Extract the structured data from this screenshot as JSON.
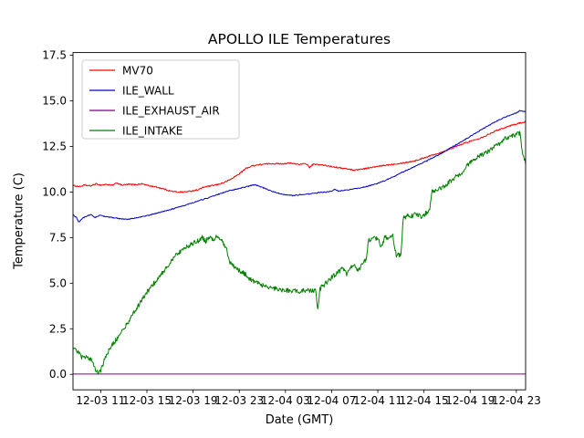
{
  "chart_data": {
    "type": "line",
    "title": "APOLLO ILE Temperatures",
    "xlabel": "Date (GMT)",
    "ylabel": "Temperature (C)",
    "grid": false,
    "legend_position": "upper left",
    "x_encoding": "hours since 12-03 00:00 GMT",
    "xlim": [
      8.6,
      47.8
    ],
    "ylim": [
      -0.85,
      17.65
    ],
    "yticks": [
      0,
      2.5,
      5,
      7.5,
      10,
      12.5,
      15,
      17.5
    ],
    "ytick_labels": [
      "0.0",
      "2.5",
      "5.0",
      "7.5",
      "10.0",
      "12.5",
      "15.0",
      "17.5"
    ],
    "xticks": [
      11,
      15,
      19,
      23,
      27,
      31,
      35,
      39,
      43,
      47
    ],
    "xtick_labels": [
      "12-03 11",
      "12-03 15",
      "12-03 19",
      "12-03 23",
      "12-04 03",
      "12-04 07",
      "12-04 11",
      "12-04 15",
      "12-04 19",
      "12-04 23"
    ],
    "series": [
      {
        "name": "MV70",
        "color": "#ff0000",
        "noise": 0.035,
        "keypoints": [
          [
            8.6,
            10.35
          ],
          [
            9.2,
            10.3
          ],
          [
            9.6,
            10.38
          ],
          [
            10.1,
            10.33
          ],
          [
            10.6,
            10.45
          ],
          [
            11.0,
            10.38
          ],
          [
            11.5,
            10.42
          ],
          [
            12.0,
            10.36
          ],
          [
            12.4,
            10.5
          ],
          [
            12.8,
            10.38
          ],
          [
            13.4,
            10.42
          ],
          [
            14.0,
            10.4
          ],
          [
            14.6,
            10.45
          ],
          [
            15.2,
            10.34
          ],
          [
            15.8,
            10.28
          ],
          [
            16.4,
            10.18
          ],
          [
            17.0,
            10.06
          ],
          [
            17.6,
            10.0
          ],
          [
            18.2,
            10.0
          ],
          [
            18.8,
            10.05
          ],
          [
            19.4,
            10.12
          ],
          [
            20.0,
            10.28
          ],
          [
            20.6,
            10.34
          ],
          [
            21.2,
            10.42
          ],
          [
            21.8,
            10.55
          ],
          [
            22.4,
            10.75
          ],
          [
            23.0,
            11.0
          ],
          [
            23.6,
            11.3
          ],
          [
            24.2,
            11.45
          ],
          [
            25.0,
            11.52
          ],
          [
            25.8,
            11.56
          ],
          [
            26.6,
            11.55
          ],
          [
            27.4,
            11.58
          ],
          [
            28.2,
            11.52
          ],
          [
            28.8,
            11.55
          ],
          [
            29.1,
            11.35
          ],
          [
            29.4,
            11.52
          ],
          [
            30.0,
            11.5
          ],
          [
            30.6,
            11.44
          ],
          [
            31.2,
            11.38
          ],
          [
            31.8,
            11.32
          ],
          [
            32.4,
            11.26
          ],
          [
            33.0,
            11.2
          ],
          [
            33.6,
            11.26
          ],
          [
            34.2,
            11.32
          ],
          [
            34.8,
            11.38
          ],
          [
            35.4,
            11.44
          ],
          [
            36.0,
            11.5
          ],
          [
            36.6,
            11.55
          ],
          [
            37.2,
            11.6
          ],
          [
            37.8,
            11.66
          ],
          [
            38.4,
            11.74
          ],
          [
            39.0,
            11.88
          ],
          [
            39.6,
            12.0
          ],
          [
            40.2,
            12.12
          ],
          [
            40.8,
            12.25
          ],
          [
            41.4,
            12.4
          ],
          [
            42.0,
            12.55
          ],
          [
            42.6,
            12.7
          ],
          [
            43.2,
            12.82
          ],
          [
            43.8,
            12.95
          ],
          [
            44.4,
            13.1
          ],
          [
            45.0,
            13.3
          ],
          [
            45.6,
            13.45
          ],
          [
            46.2,
            13.58
          ],
          [
            46.8,
            13.7
          ],
          [
            47.4,
            13.8
          ],
          [
            47.8,
            13.85
          ]
        ]
      },
      {
        "name": "ILE_WALL",
        "color": "#0000cd",
        "noise": 0.025,
        "keypoints": [
          [
            8.6,
            8.75
          ],
          [
            8.9,
            8.6
          ],
          [
            9.1,
            8.35
          ],
          [
            9.4,
            8.55
          ],
          [
            9.9,
            8.72
          ],
          [
            10.2,
            8.75
          ],
          [
            10.5,
            8.6
          ],
          [
            10.9,
            8.72
          ],
          [
            11.4,
            8.66
          ],
          [
            12.0,
            8.6
          ],
          [
            12.6,
            8.54
          ],
          [
            13.2,
            8.5
          ],
          [
            13.8,
            8.55
          ],
          [
            14.4,
            8.62
          ],
          [
            15.0,
            8.7
          ],
          [
            15.6,
            8.8
          ],
          [
            16.2,
            8.9
          ],
          [
            16.8,
            9.0
          ],
          [
            17.4,
            9.1
          ],
          [
            18.0,
            9.22
          ],
          [
            18.6,
            9.34
          ],
          [
            19.2,
            9.46
          ],
          [
            19.8,
            9.58
          ],
          [
            20.4,
            9.7
          ],
          [
            21.0,
            9.84
          ],
          [
            21.6,
            9.96
          ],
          [
            22.2,
            10.08
          ],
          [
            22.8,
            10.16
          ],
          [
            23.4,
            10.25
          ],
          [
            24.0,
            10.35
          ],
          [
            24.3,
            10.4
          ],
          [
            24.7,
            10.33
          ],
          [
            25.2,
            10.2
          ],
          [
            25.8,
            10.05
          ],
          [
            26.4,
            9.93
          ],
          [
            27.0,
            9.86
          ],
          [
            27.6,
            9.8
          ],
          [
            28.2,
            9.85
          ],
          [
            28.8,
            9.88
          ],
          [
            29.4,
            9.92
          ],
          [
            30.0,
            9.98
          ],
          [
            30.6,
            10.0
          ],
          [
            31.0,
            10.04
          ],
          [
            31.3,
            10.16
          ],
          [
            31.6,
            10.05
          ],
          [
            32.2,
            10.1
          ],
          [
            32.8,
            10.16
          ],
          [
            33.4,
            10.22
          ],
          [
            34.0,
            10.3
          ],
          [
            34.6,
            10.4
          ],
          [
            35.2,
            10.52
          ],
          [
            35.8,
            10.68
          ],
          [
            36.4,
            10.85
          ],
          [
            37.0,
            11.05
          ],
          [
            37.6,
            11.22
          ],
          [
            38.2,
            11.4
          ],
          [
            38.8,
            11.58
          ],
          [
            39.4,
            11.76
          ],
          [
            40.0,
            11.95
          ],
          [
            40.6,
            12.15
          ],
          [
            41.2,
            12.38
          ],
          [
            41.8,
            12.6
          ],
          [
            42.4,
            12.82
          ],
          [
            43.0,
            13.05
          ],
          [
            43.6,
            13.28
          ],
          [
            44.2,
            13.5
          ],
          [
            44.8,
            13.72
          ],
          [
            45.4,
            13.92
          ],
          [
            46.0,
            14.1
          ],
          [
            46.6,
            14.25
          ],
          [
            47.0,
            14.33
          ],
          [
            47.3,
            14.45
          ],
          [
            47.8,
            14.4
          ]
        ]
      },
      {
        "name": "ILE_EXHAUST_AIR",
        "color": "#800080",
        "noise": 0,
        "keypoints": [
          [
            8.6,
            0.02
          ],
          [
            47.8,
            0.02
          ]
        ]
      },
      {
        "name": "ILE_INTAKE",
        "color": "#008000",
        "noise": 0.13,
        "keypoints": [
          [
            8.6,
            1.55
          ],
          [
            8.9,
            1.35
          ],
          [
            9.2,
            1.05
          ],
          [
            9.5,
            0.88
          ],
          [
            9.9,
            0.92
          ],
          [
            10.2,
            0.78
          ],
          [
            10.5,
            0.35
          ],
          [
            10.8,
            0.05
          ],
          [
            11.0,
            0.2
          ],
          [
            11.3,
            0.75
          ],
          [
            11.6,
            1.2
          ],
          [
            12.0,
            1.6
          ],
          [
            12.5,
            2.05
          ],
          [
            13.0,
            2.5
          ],
          [
            13.5,
            3.0
          ],
          [
            14.0,
            3.5
          ],
          [
            14.5,
            4.0
          ],
          [
            15.0,
            4.5
          ],
          [
            15.5,
            4.9
          ],
          [
            16.0,
            5.3
          ],
          [
            16.5,
            5.7
          ],
          [
            17.0,
            6.1
          ],
          [
            17.5,
            6.5
          ],
          [
            18.0,
            6.8
          ],
          [
            18.5,
            7.0
          ],
          [
            19.0,
            7.2
          ],
          [
            19.5,
            7.35
          ],
          [
            19.8,
            7.5
          ],
          [
            20.1,
            7.3
          ],
          [
            20.4,
            7.55
          ],
          [
            20.8,
            7.35
          ],
          [
            21.1,
            7.6
          ],
          [
            21.5,
            7.3
          ],
          [
            21.9,
            6.9
          ],
          [
            22.2,
            6.1
          ],
          [
            22.5,
            5.95
          ],
          [
            23.0,
            5.7
          ],
          [
            23.5,
            5.5
          ],
          [
            24.0,
            5.2
          ],
          [
            24.5,
            5.0
          ],
          [
            25.0,
            4.9
          ],
          [
            25.6,
            4.78
          ],
          [
            26.2,
            4.68
          ],
          [
            26.8,
            4.62
          ],
          [
            27.4,
            4.6
          ],
          [
            28.0,
            4.55
          ],
          [
            28.6,
            4.6
          ],
          [
            29.2,
            4.62
          ],
          [
            29.6,
            4.6
          ],
          [
            29.8,
            3.5
          ],
          [
            30.0,
            4.7
          ],
          [
            30.5,
            5.0
          ],
          [
            31.0,
            5.3
          ],
          [
            31.5,
            5.6
          ],
          [
            32.0,
            5.8
          ],
          [
            32.3,
            5.5
          ],
          [
            32.6,
            5.92
          ],
          [
            33.0,
            6.0
          ],
          [
            33.3,
            5.6
          ],
          [
            33.6,
            6.1
          ],
          [
            34.0,
            6.3
          ],
          [
            34.2,
            7.35
          ],
          [
            34.6,
            7.5
          ],
          [
            35.0,
            7.45
          ],
          [
            35.3,
            6.9
          ],
          [
            35.6,
            7.5
          ],
          [
            36.0,
            7.5
          ],
          [
            36.3,
            7.6
          ],
          [
            36.6,
            6.5
          ],
          [
            37.0,
            6.6
          ],
          [
            37.2,
            8.55
          ],
          [
            37.6,
            8.7
          ],
          [
            38.0,
            8.7
          ],
          [
            38.4,
            8.8
          ],
          [
            38.8,
            8.65
          ],
          [
            39.2,
            8.85
          ],
          [
            39.5,
            9.0
          ],
          [
            39.7,
            10.0
          ],
          [
            40.0,
            10.1
          ],
          [
            40.4,
            10.2
          ],
          [
            40.8,
            10.3
          ],
          [
            41.2,
            10.55
          ],
          [
            41.8,
            10.85
          ],
          [
            42.4,
            11.15
          ],
          [
            43.0,
            11.65
          ],
          [
            43.6,
            11.9
          ],
          [
            44.2,
            12.1
          ],
          [
            44.8,
            12.35
          ],
          [
            45.4,
            12.6
          ],
          [
            46.0,
            12.9
          ],
          [
            46.4,
            13.0
          ],
          [
            46.8,
            13.1
          ],
          [
            47.1,
            13.3
          ],
          [
            47.3,
            13.2
          ],
          [
            47.5,
            12.3
          ],
          [
            47.8,
            11.6
          ]
        ]
      }
    ]
  }
}
